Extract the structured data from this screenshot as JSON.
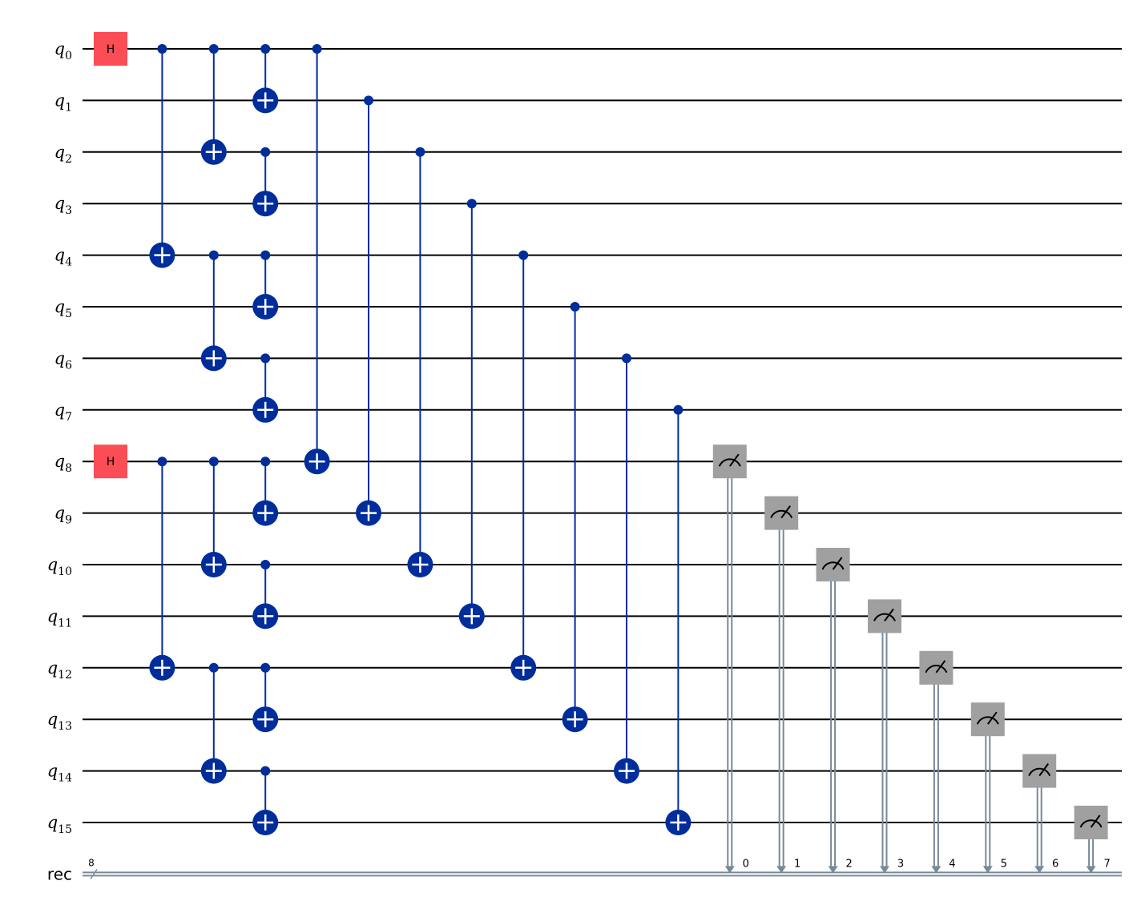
{
  "circuit": {
    "wires": [
      {
        "name": "q",
        "index": "0"
      },
      {
        "name": "q",
        "index": "1"
      },
      {
        "name": "q",
        "index": "2"
      },
      {
        "name": "q",
        "index": "3"
      },
      {
        "name": "q",
        "index": "4"
      },
      {
        "name": "q",
        "index": "5"
      },
      {
        "name": "q",
        "index": "6"
      },
      {
        "name": "q",
        "index": "7"
      },
      {
        "name": "q",
        "index": "8"
      },
      {
        "name": "q",
        "index": "9"
      },
      {
        "name": "q",
        "index": "10"
      },
      {
        "name": "q",
        "index": "11"
      },
      {
        "name": "q",
        "index": "12"
      },
      {
        "name": "q",
        "index": "13"
      },
      {
        "name": "q",
        "index": "14"
      },
      {
        "name": "q",
        "index": "15"
      }
    ],
    "register": {
      "name": "rec",
      "size": 8
    },
    "moments": [
      [
        {
          "gate": "h",
          "label": "H",
          "qubit": 0
        },
        {
          "gate": "h",
          "label": "H",
          "qubit": 8
        }
      ],
      [
        {
          "gate": "cx",
          "control": 0,
          "target": 4
        },
        {
          "gate": "cx",
          "control": 8,
          "target": 12
        }
      ],
      [
        {
          "gate": "cx",
          "control": 0,
          "target": 2
        },
        {
          "gate": "cx",
          "control": 4,
          "target": 6
        },
        {
          "gate": "cx",
          "control": 8,
          "target": 10
        },
        {
          "gate": "cx",
          "control": 12,
          "target": 14
        }
      ],
      [
        {
          "gate": "cx",
          "control": 0,
          "target": 1
        },
        {
          "gate": "cx",
          "control": 2,
          "target": 3
        },
        {
          "gate": "cx",
          "control": 4,
          "target": 5
        },
        {
          "gate": "cx",
          "control": 6,
          "target": 7
        },
        {
          "gate": "cx",
          "control": 8,
          "target": 9
        },
        {
          "gate": "cx",
          "control": 10,
          "target": 11
        },
        {
          "gate": "cx",
          "control": 12,
          "target": 13
        },
        {
          "gate": "cx",
          "control": 14,
          "target": 15
        }
      ],
      [
        {
          "gate": "cx",
          "control": 0,
          "target": 8
        }
      ],
      [
        {
          "gate": "cx",
          "control": 1,
          "target": 9
        }
      ],
      [
        {
          "gate": "cx",
          "control": 2,
          "target": 10
        }
      ],
      [
        {
          "gate": "cx",
          "control": 3,
          "target": 11
        }
      ],
      [
        {
          "gate": "cx",
          "control": 4,
          "target": 12
        }
      ],
      [
        {
          "gate": "cx",
          "control": 5,
          "target": 13
        }
      ],
      [
        {
          "gate": "cx",
          "control": 6,
          "target": 14
        }
      ],
      [
        {
          "gate": "cx",
          "control": 7,
          "target": 15
        }
      ],
      [
        {
          "gate": "measure",
          "qubit": 8,
          "clbit": 0
        }
      ],
      [
        {
          "gate": "measure",
          "qubit": 9,
          "clbit": 1
        }
      ],
      [
        {
          "gate": "measure",
          "qubit": 10,
          "clbit": 2
        }
      ],
      [
        {
          "gate": "measure",
          "qubit": 11,
          "clbit": 3
        }
      ],
      [
        {
          "gate": "measure",
          "qubit": 12,
          "clbit": 4
        }
      ],
      [
        {
          "gate": "measure",
          "qubit": 13,
          "clbit": 5
        }
      ],
      [
        {
          "gate": "measure",
          "qubit": 14,
          "clbit": 6
        }
      ],
      [
        {
          "gate": "measure",
          "qubit": 15,
          "clbit": 7
        }
      ]
    ]
  }
}
